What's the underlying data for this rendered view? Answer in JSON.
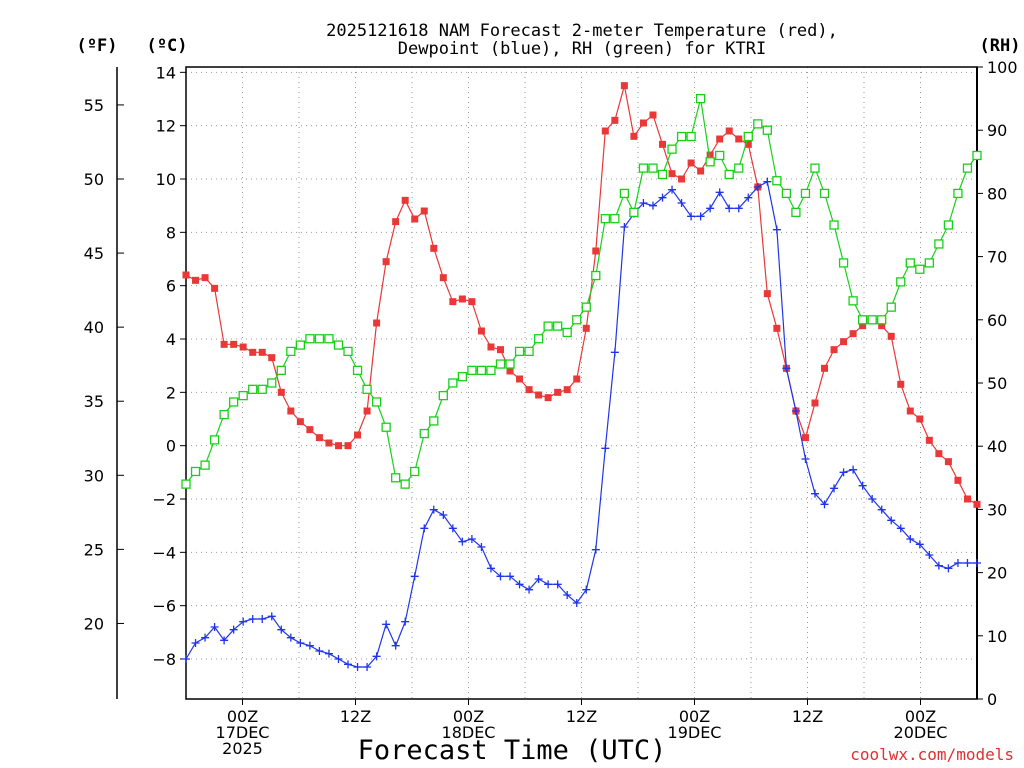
{
  "chart_data": {
    "type": "line",
    "title_line1": "2025121618 NAM Forecast 2-meter Temperature (red),",
    "title_line2": "Dewpoint (blue), RH (green) for KTRI",
    "left_unit_f": "(ºF)",
    "left_unit_c": "(ºC)",
    "right_unit": "(RH)",
    "xlabel": "Forecast Time (UTC)",
    "credit": "coolwx.com/models",
    "ylim_c": [
      -9.5,
      14.2
    ],
    "ylim_rh": [
      0,
      100
    ],
    "xlim_hours": [
      0,
      84
    ],
    "c_ticks": [
      14,
      12,
      10,
      8,
      6,
      4,
      2,
      0,
      -2,
      -4,
      -6,
      -8
    ],
    "c_tick_labels": [
      "14",
      "12",
      "10",
      "8",
      "6",
      "4",
      "2",
      "0",
      "−2",
      "−4",
      "−6",
      "−8"
    ],
    "f_ticks": [
      55,
      50,
      45,
      40,
      35,
      30,
      25,
      20
    ],
    "f_tick_labels": [
      "55",
      "50",
      "45",
      "40",
      "35",
      "30",
      "25",
      "20"
    ],
    "rh_ticks": [
      100,
      90,
      80,
      70,
      60,
      50,
      40,
      30,
      20,
      10,
      0
    ],
    "rh_tick_labels": [
      "100",
      "90",
      "80",
      "70",
      "60",
      "50",
      "40",
      "30",
      "20",
      "10",
      "0"
    ],
    "x_ticks_hours": [
      6,
      18,
      30,
      42,
      54,
      66,
      78
    ],
    "x_tick_labels": [
      {
        "lines": [
          "00Z",
          "17DEC",
          "2025"
        ]
      },
      {
        "lines": [
          "12Z"
        ]
      },
      {
        "lines": [
          "00Z",
          "18DEC"
        ]
      },
      {
        "lines": [
          "12Z"
        ]
      },
      {
        "lines": [
          "00Z",
          "19DEC"
        ]
      },
      {
        "lines": [
          "12Z"
        ]
      },
      {
        "lines": [
          "00Z",
          "20DEC"
        ]
      }
    ],
    "series": [
      {
        "name": "Temperature",
        "color": "#e83838",
        "marker": "filled-square",
        "values": [
          6.4,
          6.2,
          6.3,
          5.9,
          3.8,
          3.8,
          3.7,
          3.5,
          3.5,
          3.3,
          2.0,
          1.3,
          0.9,
          0.6,
          0.3,
          0.1,
          0.0,
          0.0,
          0.4,
          1.3,
          4.6,
          6.9,
          8.4,
          9.2,
          8.5,
          8.8,
          7.4,
          6.3,
          5.4,
          5.5,
          5.4,
          4.3,
          3.7,
          3.6,
          2.8,
          2.5,
          2.1,
          1.9,
          1.8,
          2.0,
          2.1,
          2.5,
          4.4,
          7.3,
          11.8,
          12.2,
          13.5,
          11.6,
          12.1,
          12.4,
          11.3,
          10.2,
          10.0,
          10.6,
          10.3,
          10.9,
          11.5,
          11.8,
          11.5,
          11.3,
          9.7,
          5.7,
          4.4,
          2.9,
          1.3,
          0.3,
          1.6,
          2.9,
          3.6,
          3.9,
          4.2,
          4.5,
          4.7,
          4.5,
          4.1,
          2.3,
          1.3,
          1.0,
          0.2,
          -0.3,
          -0.6,
          -1.3,
          -2.0,
          -2.2
        ]
      },
      {
        "name": "Dewpoint",
        "color": "#2035e8",
        "marker": "plus",
        "values": [
          -8.0,
          -7.4,
          -7.2,
          -6.8,
          -7.3,
          -6.9,
          -6.6,
          -6.5,
          -6.5,
          -6.4,
          -6.9,
          -7.2,
          -7.4,
          -7.5,
          -7.7,
          -7.8,
          -8.0,
          -8.2,
          -8.3,
          -8.3,
          -7.9,
          -6.7,
          -7.5,
          -6.6,
          -4.9,
          -3.1,
          -2.4,
          -2.6,
          -3.1,
          -3.6,
          -3.5,
          -3.8,
          -4.6,
          -4.9,
          -4.9,
          -5.2,
          -5.4,
          -5.0,
          -5.2,
          -5.2,
          -5.6,
          -5.9,
          -5.4,
          -3.9,
          -0.1,
          3.5,
          8.2,
          8.7,
          9.1,
          9.0,
          9.3,
          9.6,
          9.1,
          8.6,
          8.6,
          8.9,
          9.5,
          8.9,
          8.9,
          9.3,
          9.7,
          9.9,
          8.1,
          2.9,
          1.3,
          -0.5,
          -1.8,
          -2.2,
          -1.6,
          -1.0,
          -0.9,
          -1.5,
          -2.0,
          -2.4,
          -2.8,
          -3.1,
          -3.5,
          -3.7,
          -4.1,
          -4.5,
          -4.6,
          -4.4,
          -4.4,
          -4.4
        ]
      },
      {
        "name": "RH",
        "color": "#18d018",
        "marker": "open-square",
        "values": [
          34,
          36,
          37,
          41,
          45,
          47,
          48,
          49,
          49,
          50,
          52,
          55,
          56,
          57,
          57,
          57,
          56,
          55,
          52,
          49,
          47,
          43,
          35,
          34,
          36,
          42,
          44,
          48,
          50,
          51,
          52,
          52,
          52,
          53,
          53,
          55,
          55,
          57,
          59,
          59,
          58,
          60,
          62,
          67,
          76,
          76,
          80,
          77,
          84,
          84,
          83,
          87,
          89,
          89,
          95,
          85,
          86,
          83,
          84,
          89,
          91,
          90,
          82,
          80,
          77,
          80,
          84,
          80,
          75,
          69,
          63,
          60,
          60,
          60,
          62,
          66,
          69,
          68,
          69,
          72,
          75,
          80,
          84,
          86
        ]
      }
    ]
  }
}
